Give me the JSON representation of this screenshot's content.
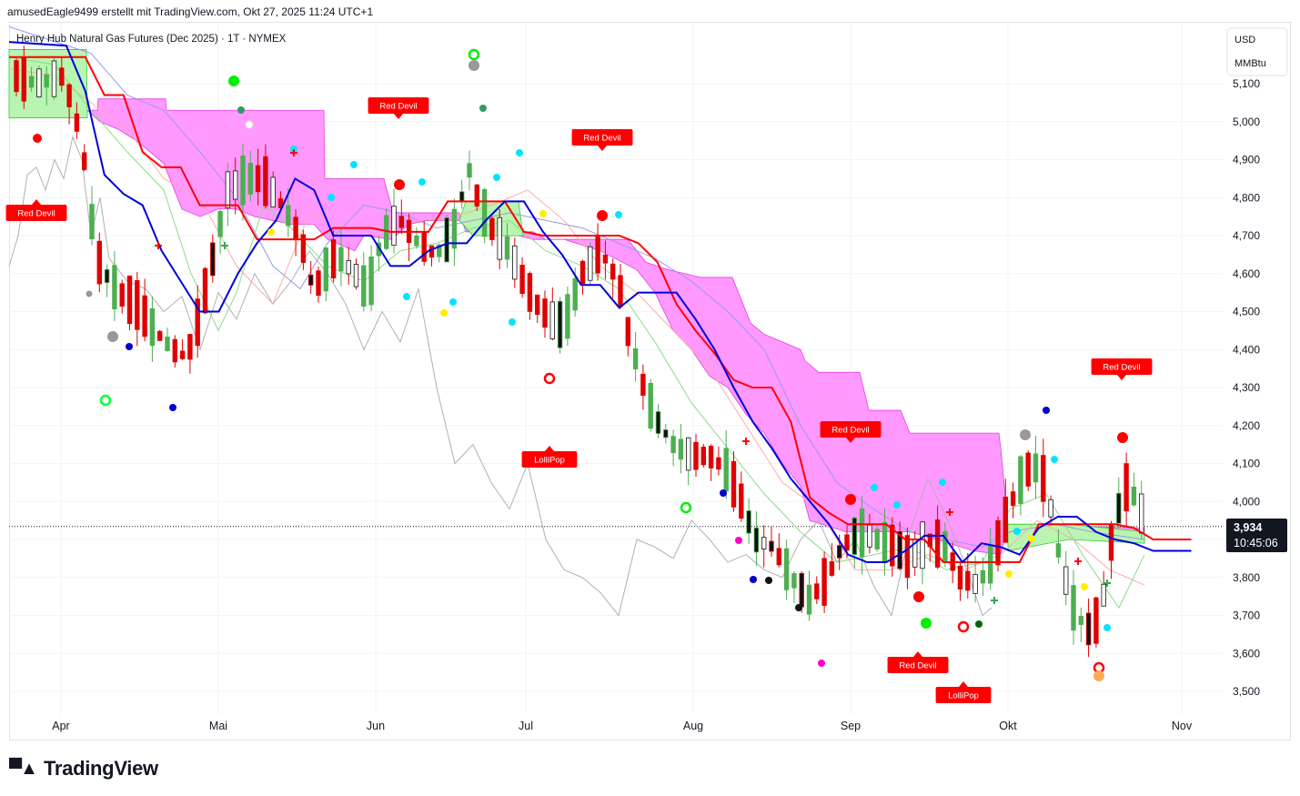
{
  "header": {
    "credit": "amusedEagle9499 erstellt mit TradingView.com, Okt 27, 2025 11:24 UTC+1",
    "symbol_title": "Henry Hub Natural Gas Futures (Dec 2025) · 1T · NYMEX"
  },
  "axis": {
    "currency": "USD",
    "unit": "MMBtu"
  },
  "price_label": {
    "price": "3,934",
    "countdown": "10:45:06"
  },
  "footer": {
    "brand": "TradingView"
  },
  "colors": {
    "cloud_bearish": "#ff99ff",
    "cloud_bullish": "#b9f5b0",
    "kijun": "#ff0000",
    "tenkan": "#0000dd",
    "bull_candle": "#4caf50",
    "bear_candle": "#e00000",
    "badge": "#ff0000"
  },
  "chart_data": {
    "type": "line",
    "title": "Henry Hub Natural Gas Futures (Dec 2025) · 1T · NYMEX",
    "ylim": [
      3.47,
      5.24
    ],
    "y_ticks": [
      3.5,
      3.6,
      3.7,
      3.8,
      3.9,
      4.0,
      4.1,
      4.2,
      4.3,
      4.4,
      4.5,
      4.6,
      4.7,
      4.8,
      4.9,
      5.0,
      5.1
    ],
    "y_tick_labels": [
      "3,500",
      "3,600",
      "3,700",
      "3,800",
      "3,900",
      "4,000",
      "4,100",
      "4,200",
      "4,300",
      "4,400",
      "4,500",
      "4,600",
      "4,700",
      "4,800",
      "4,900",
      "5,000",
      "5,100"
    ],
    "x_ticks": [
      "Apr",
      "Mai",
      "Jun",
      "Jul",
      "Aug",
      "Sep",
      "Okt",
      "Nov"
    ],
    "grid": true,
    "last_price": 3.934,
    "series": [
      {
        "name": "Kijun",
        "points": [
          [
            0,
            5.17
          ],
          [
            4,
            5.17
          ],
          [
            5,
            5.07
          ],
          [
            6,
            5.07
          ],
          [
            7,
            4.92
          ],
          [
            8,
            4.88
          ],
          [
            9,
            4.88
          ],
          [
            10,
            4.78
          ],
          [
            11,
            4.78
          ],
          [
            12,
            4.78
          ],
          [
            13,
            4.69
          ],
          [
            14,
            4.69
          ],
          [
            15,
            4.69
          ],
          [
            16,
            4.69
          ],
          [
            17,
            4.72
          ],
          [
            18,
            4.72
          ],
          [
            19,
            4.72
          ],
          [
            20,
            4.71
          ],
          [
            21,
            4.71
          ],
          [
            22,
            4.71
          ],
          [
            23,
            4.79
          ],
          [
            24,
            4.79
          ],
          [
            25,
            4.79
          ],
          [
            26,
            4.79
          ],
          [
            27,
            4.71
          ],
          [
            28,
            4.7
          ],
          [
            29,
            4.7
          ],
          [
            30,
            4.7
          ],
          [
            31,
            4.7
          ],
          [
            32,
            4.7
          ],
          [
            33,
            4.68
          ],
          [
            34,
            4.63
          ],
          [
            35,
            4.52
          ],
          [
            36,
            4.45
          ],
          [
            37,
            4.39
          ],
          [
            38,
            4.32
          ],
          [
            39,
            4.3
          ],
          [
            40,
            4.3
          ],
          [
            41,
            4.21
          ],
          [
            42,
            4.01
          ],
          [
            43,
            3.97
          ],
          [
            44,
            3.94
          ],
          [
            45,
            3.94
          ],
          [
            46,
            3.94
          ],
          [
            47,
            3.9
          ],
          [
            48,
            3.9
          ],
          [
            49,
            3.84
          ],
          [
            50,
            3.84
          ],
          [
            51,
            3.84
          ],
          [
            52,
            3.84
          ],
          [
            53,
            3.84
          ],
          [
            54,
            3.94
          ],
          [
            55,
            3.94
          ],
          [
            56,
            3.94
          ],
          [
            57,
            3.94
          ],
          [
            58,
            3.94
          ],
          [
            59,
            3.93
          ],
          [
            60,
            3.9
          ],
          [
            61,
            3.9
          ],
          [
            62,
            3.9
          ]
        ]
      },
      {
        "name": "Tenkan",
        "points": [
          [
            0,
            5.21
          ],
          [
            3,
            5.2
          ],
          [
            4,
            5.08
          ],
          [
            5,
            4.86
          ],
          [
            6,
            4.81
          ],
          [
            7,
            4.78
          ],
          [
            8,
            4.66
          ],
          [
            9,
            4.58
          ],
          [
            10,
            4.5
          ],
          [
            11,
            4.5
          ],
          [
            12,
            4.6
          ],
          [
            13,
            4.68
          ],
          [
            14,
            4.74
          ],
          [
            15,
            4.85
          ],
          [
            16,
            4.82
          ],
          [
            17,
            4.7
          ],
          [
            18,
            4.7
          ],
          [
            19,
            4.7
          ],
          [
            20,
            4.62
          ],
          [
            21,
            4.62
          ],
          [
            22,
            4.66
          ],
          [
            23,
            4.68
          ],
          [
            24,
            4.68
          ],
          [
            25,
            4.74
          ],
          [
            26,
            4.79
          ],
          [
            27,
            4.79
          ],
          [
            28,
            4.71
          ],
          [
            29,
            4.65
          ],
          [
            30,
            4.57
          ],
          [
            31,
            4.57
          ],
          [
            32,
            4.51
          ],
          [
            33,
            4.55
          ],
          [
            34,
            4.55
          ],
          [
            35,
            4.55
          ],
          [
            36,
            4.48
          ],
          [
            37,
            4.4
          ],
          [
            38,
            4.3
          ],
          [
            39,
            4.21
          ],
          [
            40,
            4.14
          ],
          [
            41,
            4.06
          ],
          [
            42,
            4.0
          ],
          [
            43,
            3.94
          ],
          [
            44,
            3.86
          ],
          [
            45,
            3.84
          ],
          [
            46,
            3.84
          ],
          [
            47,
            3.87
          ],
          [
            48,
            3.91
          ],
          [
            49,
            3.91
          ],
          [
            50,
            3.84
          ],
          [
            51,
            3.89
          ],
          [
            52,
            3.88
          ],
          [
            53,
            3.86
          ],
          [
            54,
            3.93
          ],
          [
            55,
            3.96
          ],
          [
            56,
            3.96
          ],
          [
            57,
            3.92
          ],
          [
            58,
            3.9
          ],
          [
            59,
            3.89
          ],
          [
            60,
            3.87
          ],
          [
            61,
            3.87
          ],
          [
            62,
            3.87
          ]
        ]
      }
    ]
  },
  "badges": [
    {
      "text": "Red Devil"
    },
    {
      "text": "Red Devil"
    },
    {
      "text": "Red Devil"
    },
    {
      "text": "Red Devil"
    },
    {
      "text": "Red Devil"
    },
    {
      "text": "Red Devil"
    },
    {
      "text": "LolliPop"
    },
    {
      "text": "LolliPop"
    }
  ]
}
